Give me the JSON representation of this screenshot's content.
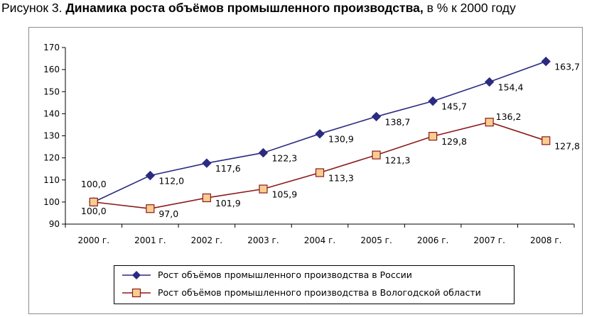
{
  "caption": {
    "prefix": "Рисунок 3. ",
    "title": "Динамика роста объёмов промышленного производства,",
    "suffix": " в % к 2000 году"
  },
  "colors": {
    "russia": "#2b2b82",
    "vologda": "#8b1a1a",
    "vologda_marker_fill": "#f9cd8f"
  },
  "chart_data": {
    "type": "line",
    "title": "Динамика роста объёмов промышленного производства, в % к 2000 году",
    "xlabel": "",
    "ylabel": "",
    "ylim": [
      90,
      170
    ],
    "yticks": [
      "90",
      "100",
      "110",
      "120",
      "130",
      "140",
      "150",
      "160",
      "170"
    ],
    "categories": [
      "2000 г.",
      "2001 г.",
      "2002 г.",
      "2003 г.",
      "2004 г.",
      "2005 г.",
      "2006 г.",
      "2007 г.",
      "2008 г."
    ],
    "series": [
      {
        "name": "Рост объёмов промышленного производства в России",
        "values": [
          100.0,
          112.0,
          117.6,
          122.3,
          130.9,
          138.7,
          145.7,
          154.4,
          163.7
        ],
        "labels": [
          "100,0",
          "112,0",
          "117,6",
          "122,3",
          "130,9",
          "138,7",
          "145,7",
          "154,4",
          "163,7"
        ],
        "marker": "diamond"
      },
      {
        "name": "Рост объёмов промышленного производства в Вологодской области",
        "values": [
          100.0,
          97.0,
          101.9,
          105.9,
          113.3,
          121.3,
          129.8,
          136.2,
          127.8
        ],
        "labels": [
          "100,0",
          "97,0",
          "101,9",
          "105,9",
          "113,3",
          "121,3",
          "129,8",
          "136,2",
          "127,8"
        ],
        "marker": "square"
      }
    ],
    "legend": "bottom"
  }
}
